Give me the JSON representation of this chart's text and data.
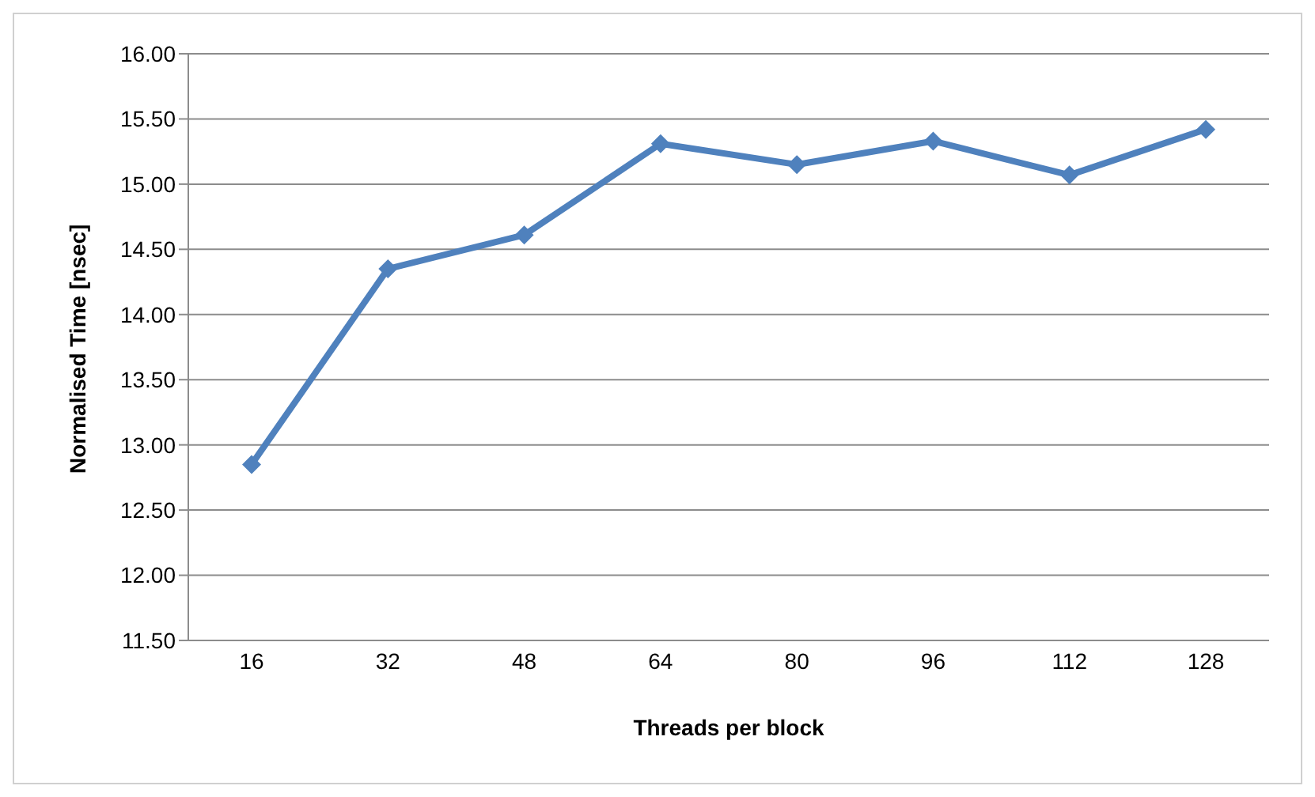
{
  "chart_data": {
    "type": "line",
    "xlabel": "Threads per block",
    "ylabel": "Normalised Time [nsec]",
    "categories": [
      "16",
      "32",
      "48",
      "64",
      "80",
      "96",
      "112",
      "128"
    ],
    "series": [
      {
        "color": "#4f81bd",
        "values": [
          12.85,
          14.35,
          14.61,
          15.31,
          15.15,
          15.33,
          15.07,
          15.42
        ]
      }
    ],
    "ylim": [
      11.5,
      16
    ],
    "yticks": [
      {
        "value": 11.5,
        "label": "11.50"
      },
      {
        "value": 12,
        "label": "12.00"
      },
      {
        "value": 12.5,
        "label": "12.50"
      },
      {
        "value": 13,
        "label": "13.00"
      },
      {
        "value": 13.5,
        "label": "13.50"
      },
      {
        "value": 14,
        "label": "14.00"
      },
      {
        "value": 14.5,
        "label": "14.50"
      },
      {
        "value": 15,
        "label": "15.00"
      },
      {
        "value": 15.5,
        "label": "15.50"
      },
      {
        "value": 16,
        "label": "16.00"
      }
    ],
    "grid": "y",
    "legend": false,
    "marker": "diamond",
    "line_style": "solid"
  }
}
